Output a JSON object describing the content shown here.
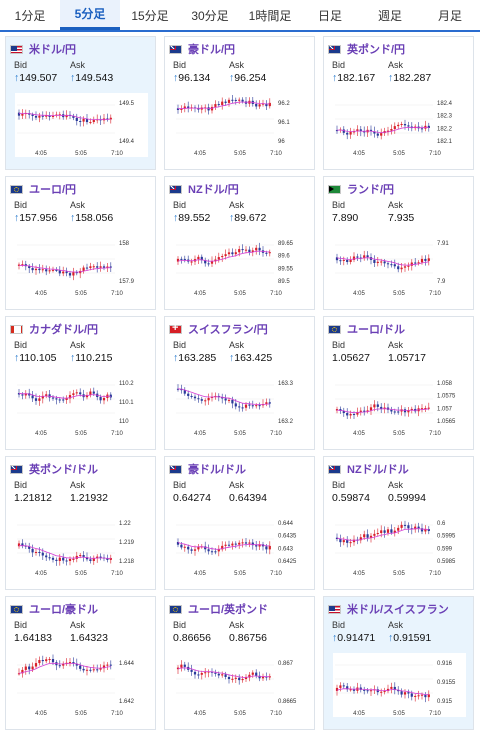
{
  "tabs": [
    "1分足",
    "5分足",
    "15分足",
    "30分足",
    "1時間足",
    "日足",
    "週足",
    "月足"
  ],
  "active_tab": 1,
  "labels": {
    "bid": "Bid",
    "ask": "Ask"
  },
  "colors": {
    "up": "#d8202a",
    "down": "#2a3a9a",
    "ma": "#d43cd4",
    "arrow": "#2277cc",
    "title": "#6a3fb5"
  },
  "cards": [
    {
      "name": "米ドル/円",
      "flag": "us",
      "bid": "149.507",
      "ask": "149.543",
      "bid_arrow": true,
      "ask_arrow": true,
      "yticks": [
        "149.5",
        "149.4"
      ],
      "xticks": [
        "4:05",
        "5:05",
        "7:10"
      ],
      "highlight": true
    },
    {
      "name": "豪ドル/円",
      "flag": "au",
      "bid": "96.134",
      "ask": "96.254",
      "bid_arrow": true,
      "ask_arrow": true,
      "yticks": [
        "96.2",
        "96.1",
        "96"
      ],
      "xticks": [
        "4:05",
        "5:05",
        "7:10"
      ],
      "highlight": false
    },
    {
      "name": "英ポンド/円",
      "flag": "gb",
      "bid": "182.167",
      "ask": "182.287",
      "bid_arrow": true,
      "ask_arrow": true,
      "yticks": [
        "182.4",
        "182.3",
        "182.2",
        "182.1"
      ],
      "xticks": [
        "4:05",
        "5:05",
        "7:10"
      ],
      "highlight": false
    },
    {
      "name": "ユーロ/円",
      "flag": "eu",
      "bid": "157.956",
      "ask": "158.056",
      "bid_arrow": true,
      "ask_arrow": true,
      "yticks": [
        "158",
        "157.9"
      ],
      "xticks": [
        "4:05",
        "5:05",
        "7:10"
      ],
      "highlight": false
    },
    {
      "name": "NZドル/円",
      "flag": "nz",
      "bid": "89.552",
      "ask": "89.672",
      "bid_arrow": true,
      "ask_arrow": true,
      "yticks": [
        "89.65",
        "89.6",
        "89.55",
        "89.5"
      ],
      "xticks": [
        "4:05",
        "5:05",
        "7:10"
      ],
      "highlight": false
    },
    {
      "name": "ランド/円",
      "flag": "za",
      "bid": "7.890",
      "ask": "7.935",
      "bid_arrow": false,
      "ask_arrow": false,
      "yticks": [
        "7.91",
        "7.9"
      ],
      "xticks": [
        "4:05",
        "5:05",
        "7:10"
      ],
      "highlight": false
    },
    {
      "name": "カナダドル/円",
      "flag": "ca",
      "bid": "110.105",
      "ask": "110.215",
      "bid_arrow": true,
      "ask_arrow": true,
      "yticks": [
        "110.2",
        "110.1",
        "110"
      ],
      "xticks": [
        "4:05",
        "5:05",
        "7:10"
      ],
      "highlight": false
    },
    {
      "name": "スイスフラン/円",
      "flag": "ch",
      "bid": "163.285",
      "ask": "163.425",
      "bid_arrow": true,
      "ask_arrow": true,
      "yticks": [
        "163.3",
        "163.2"
      ],
      "xticks": [
        "4:05",
        "5:05",
        "7:10"
      ],
      "highlight": false
    },
    {
      "name": "ユーロ/ドル",
      "flag": "eu",
      "bid": "1.05627",
      "ask": "1.05717",
      "bid_arrow": false,
      "ask_arrow": false,
      "yticks": [
        "1.058",
        "1.0575",
        "1.057",
        "1.0565"
      ],
      "xticks": [
        "4:05",
        "5:05",
        "7:10"
      ],
      "highlight": false
    },
    {
      "name": "英ポンド/ドル",
      "flag": "gb",
      "bid": "1.21812",
      "ask": "1.21932",
      "bid_arrow": false,
      "ask_arrow": false,
      "yticks": [
        "1.22",
        "1.219",
        "1.218"
      ],
      "xticks": [
        "4:05",
        "5:05",
        "7:10"
      ],
      "highlight": false
    },
    {
      "name": "豪ドル/ドル",
      "flag": "au",
      "bid": "0.64274",
      "ask": "0.64394",
      "bid_arrow": false,
      "ask_arrow": false,
      "yticks": [
        "0.644",
        "0.6435",
        "0.643",
        "0.6425"
      ],
      "xticks": [
        "4:05",
        "5:05",
        "7:10"
      ],
      "highlight": false
    },
    {
      "name": "NZドル/ドル",
      "flag": "nz",
      "bid": "0.59874",
      "ask": "0.59994",
      "bid_arrow": false,
      "ask_arrow": false,
      "yticks": [
        "0.6",
        "0.5995",
        "0.599",
        "0.5985"
      ],
      "xticks": [
        "4:05",
        "5:05",
        "7:10"
      ],
      "highlight": false
    },
    {
      "name": "ユーロ/豪ドル",
      "flag": "eu",
      "bid": "1.64183",
      "ask": "1.64323",
      "bid_arrow": false,
      "ask_arrow": false,
      "yticks": [
        "1.644",
        "1.642"
      ],
      "xticks": [
        "4:05",
        "5:05",
        "7:10"
      ],
      "highlight": false
    },
    {
      "name": "ユーロ/英ポンド",
      "flag": "eu",
      "bid": "0.86656",
      "ask": "0.86756",
      "bid_arrow": false,
      "ask_arrow": false,
      "yticks": [
        "0.867",
        "0.8665"
      ],
      "xticks": [
        "4:05",
        "5:05",
        "7:10"
      ],
      "highlight": false
    },
    {
      "name": "米ドル/スイスフラン",
      "flag": "us",
      "bid": "0.91471",
      "ask": "0.91591",
      "bid_arrow": true,
      "ask_arrow": true,
      "yticks": [
        "0.916",
        "0.9155",
        "0.915"
      ],
      "xticks": [
        "4:05",
        "5:05",
        "7:10"
      ],
      "highlight": true
    }
  ]
}
